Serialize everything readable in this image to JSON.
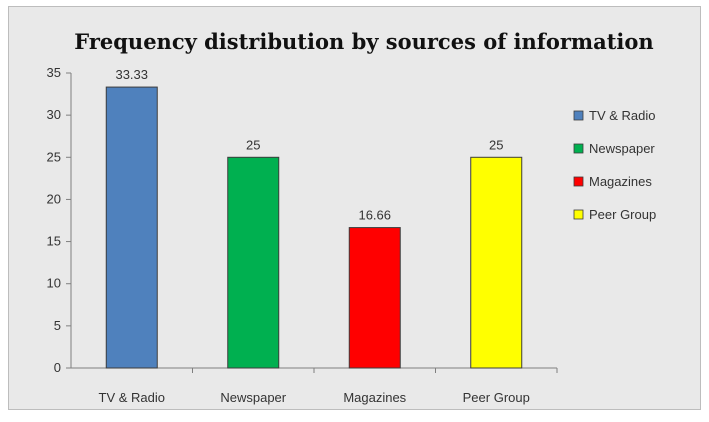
{
  "chart_data": {
    "type": "bar",
    "title": "Frequency distribution by sources of information",
    "xlabel": "",
    "ylabel": "",
    "categories": [
      "TV & Radio",
      "Newspaper",
      "Magazines",
      "Peer Group"
    ],
    "values": [
      33.33,
      25,
      16.66,
      25
    ],
    "data_labels": [
      "33.33",
      "25",
      "16.66",
      "25"
    ],
    "colors": [
      "#4f81bd",
      "#00b050",
      "#ff0000",
      "#ffff00"
    ],
    "ylim": [
      0,
      35
    ],
    "yticks": [
      0,
      5,
      10,
      15,
      20,
      25,
      30,
      35
    ],
    "grid": false,
    "legend": {
      "position": "right",
      "entries": [
        "TV & Radio",
        "Newspaper",
        "Magazines",
        "Peer Group"
      ]
    }
  }
}
